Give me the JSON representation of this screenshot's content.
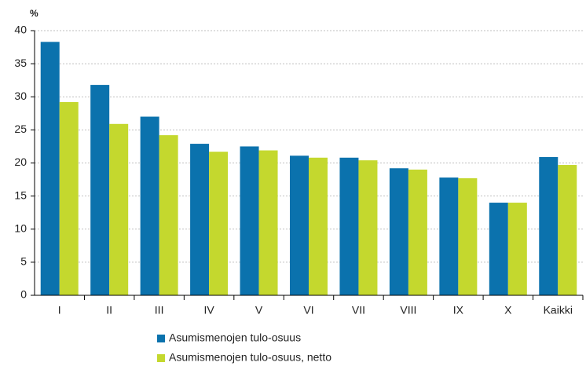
{
  "chart_data": {
    "type": "bar",
    "y_label": "%",
    "categories": [
      "I",
      "II",
      "III",
      "IV",
      "V",
      "VI",
      "VII",
      "VIII",
      "IX",
      "X",
      "Kaikki"
    ],
    "series": [
      {
        "name": "Asumismenojen tulo-osuus",
        "color": "#0b72ad",
        "values": [
          38.3,
          31.8,
          27.0,
          22.9,
          22.5,
          21.1,
          20.8,
          19.2,
          17.8,
          14.0,
          20.9
        ]
      },
      {
        "name": "Asumismenojen tulo-osuus, netto",
        "color": "#c4d82e",
        "values": [
          29.2,
          25.9,
          24.2,
          21.7,
          21.9,
          20.8,
          20.4,
          19.0,
          17.7,
          14.0,
          19.7
        ]
      }
    ],
    "ylim": [
      0,
      40
    ],
    "yticks": [
      0,
      5,
      10,
      15,
      20,
      25,
      30,
      35,
      40
    ],
    "grid": true
  }
}
